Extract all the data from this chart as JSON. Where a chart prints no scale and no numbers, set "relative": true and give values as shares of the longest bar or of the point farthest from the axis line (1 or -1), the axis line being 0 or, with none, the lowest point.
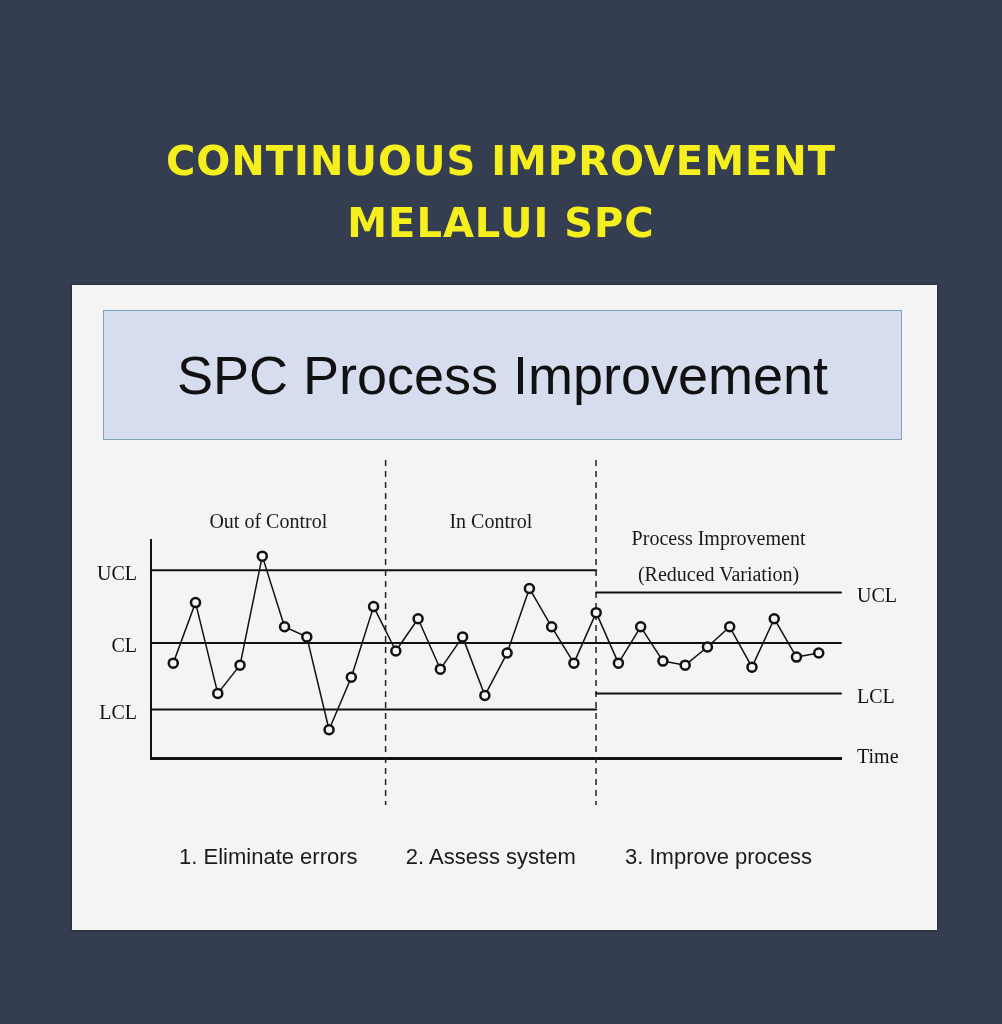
{
  "chart_data": {
    "type": "line",
    "title": "CONTINUOUS IMPROVEMENT MELALUI SPC",
    "subtitle": "SPC Process Improvement",
    "xlabel": "Time",
    "relative": true,
    "categories": [
      null,
      null,
      null,
      null,
      null,
      null,
      null,
      null,
      null,
      null,
      null,
      null,
      null,
      null,
      null,
      null,
      null,
      null,
      null,
      null,
      null,
      null,
      null,
      null,
      null,
      null,
      null,
      null,
      null,
      null,
      null,
      null
    ],
    "series": [
      {
        "color": "#111111",
        "marker": "circle",
        "values": [
          null,
          0.47,
          0.77,
          0.32,
          0.46,
          1,
          0.65,
          0.6,
          0.14,
          0.4,
          0.75,
          0.53,
          0.69,
          0.44,
          0.6,
          0.31,
          0.52,
          0.84,
          0.65,
          0.47,
          0.72,
          0.47,
          0.65,
          0.48,
          0.46,
          0.55,
          0.65,
          0.45,
          0.69,
          0.5,
          0.52,
          null
        ]
      },
      {
        "name": "UCL",
        "color": "#111111",
        "values": [
          0.93,
          0.93,
          0.93,
          0.93,
          0.93,
          0.93,
          0.93,
          0.93,
          0.93,
          0.93,
          0.93,
          0.93,
          0.93,
          0.93,
          0.93,
          0.93,
          0.93,
          0.93,
          0.93,
          0.93,
          0.93,
          null,
          null,
          null,
          null,
          null,
          null,
          null,
          null,
          null,
          null,
          null
        ]
      },
      {
        "name": "UCL",
        "color": "#111111",
        "values": [
          null,
          null,
          null,
          null,
          null,
          null,
          null,
          null,
          null,
          null,
          null,
          null,
          null,
          null,
          null,
          null,
          null,
          null,
          null,
          null,
          0.82,
          0.82,
          0.82,
          0.82,
          0.82,
          0.82,
          0.82,
          0.82,
          0.82,
          0.82,
          0.82,
          0.82
        ]
      },
      {
        "name": "CL",
        "color": "#111111",
        "values": [
          0.57,
          0.57,
          0.57,
          0.57,
          0.57,
          0.57,
          0.57,
          0.57,
          0.57,
          0.57,
          0.57,
          0.57,
          0.57,
          0.57,
          0.57,
          0.57,
          0.57,
          0.57,
          0.57,
          0.57,
          0.57,
          0.57,
          0.57,
          0.57,
          0.57,
          0.57,
          0.57,
          0.57,
          0.57,
          0.57,
          0.57,
          0.57
        ]
      },
      {
        "name": "LCL",
        "color": "#111111",
        "values": [
          0.24,
          0.24,
          0.24,
          0.24,
          0.24,
          0.24,
          0.24,
          0.24,
          0.24,
          0.24,
          0.24,
          0.24,
          0.24,
          0.24,
          0.24,
          0.24,
          0.24,
          0.24,
          0.24,
          0.24,
          0.24,
          null,
          null,
          null,
          null,
          null,
          null,
          null,
          null,
          null,
          null,
          null
        ]
      },
      {
        "name": "LCL",
        "color": "#111111",
        "values": [
          null,
          null,
          null,
          null,
          null,
          null,
          null,
          null,
          null,
          null,
          null,
          null,
          null,
          null,
          null,
          null,
          null,
          null,
          null,
          null,
          0.32,
          0.32,
          0.32,
          0.32,
          0.32,
          0.32,
          0.32,
          0.32,
          0.32,
          0.32,
          0.32,
          0.32
        ]
      }
    ],
    "annotations": [
      "Out of Control",
      "In Control",
      "Process Improvement (Reduced Variation)",
      "1. Eliminate errors",
      "2. Assess system",
      "3. Improve process"
    ]
  }
}
